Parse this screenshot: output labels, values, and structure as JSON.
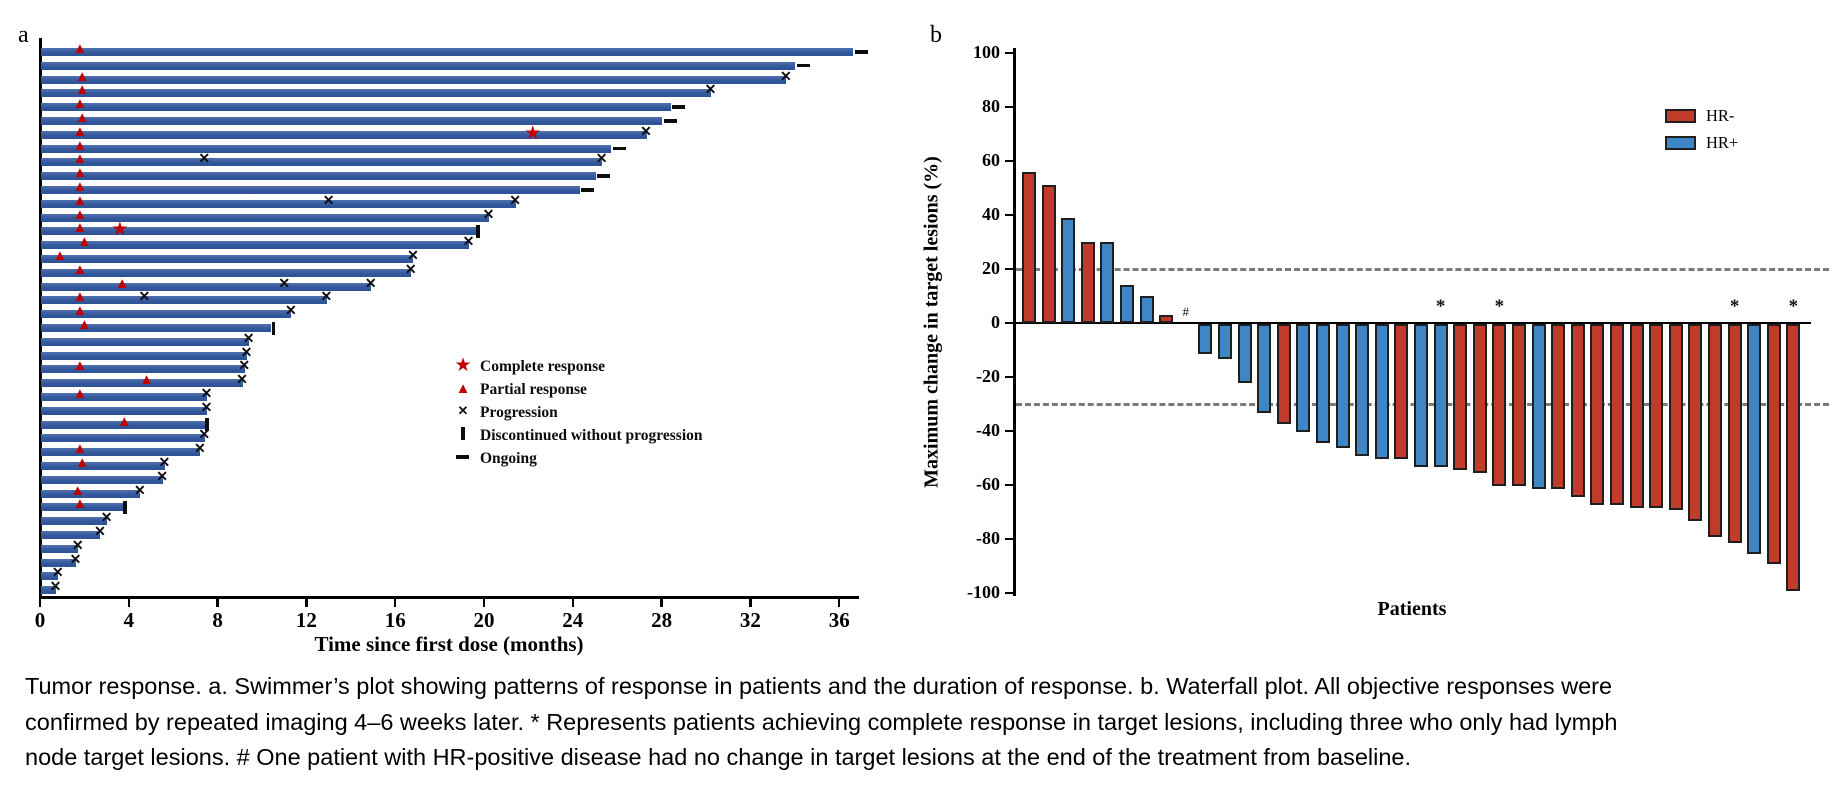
{
  "page": {
    "panel_a_label": "a",
    "panel_b_label": "b"
  },
  "colors": {
    "swimmer_bar": "#33589c",
    "hr_negative": "#c13b2a",
    "hr_positive": "#3e86c5",
    "response_marker_red": "#c00000",
    "bar_outline": "#1f1f1f",
    "dashed_reference": "#7a7a7a",
    "axis_black": "#000000"
  },
  "chart_data": [
    {
      "type": "swimmer",
      "panel": "a",
      "xlabel": "Time since first dose (months)",
      "x_ticks": [
        0,
        4,
        8,
        12,
        16,
        20,
        24,
        28,
        32,
        36
      ],
      "x_range": [
        0,
        36.8
      ],
      "legend": [
        {
          "marker": "star",
          "label": "Complete response"
        },
        {
          "marker": "triangle",
          "label": "Partial response"
        },
        {
          "marker": "x",
          "label": "Progression"
        },
        {
          "marker": "vbar",
          "label": "Discontinued without progression"
        },
        {
          "marker": "dash",
          "label": "Ongoing"
        }
      ],
      "bars": [
        {
          "length_months": 36.6,
          "end": "ongoing",
          "markers": [
            {
              "type": "partial_response",
              "month": 1.8
            }
          ]
        },
        {
          "length_months": 34.0,
          "end": "ongoing",
          "markers": []
        },
        {
          "length_months": 33.6,
          "end": "progression",
          "markers": [
            {
              "type": "partial_response",
              "month": 1.9
            }
          ]
        },
        {
          "length_months": 30.2,
          "end": "progression",
          "markers": [
            {
              "type": "partial_response",
              "month": 1.9
            }
          ]
        },
        {
          "length_months": 28.4,
          "end": "ongoing",
          "markers": [
            {
              "type": "partial_response",
              "month": 1.8
            }
          ]
        },
        {
          "length_months": 28.0,
          "end": "ongoing",
          "markers": [
            {
              "type": "partial_response",
              "month": 1.9
            }
          ]
        },
        {
          "length_months": 27.3,
          "end": "progression",
          "markers": [
            {
              "type": "partial_response",
              "month": 1.8
            },
            {
              "type": "complete_response",
              "month": 22.2
            }
          ]
        },
        {
          "length_months": 25.7,
          "end": "ongoing",
          "markers": [
            {
              "type": "partial_response",
              "month": 1.8
            }
          ]
        },
        {
          "length_months": 25.3,
          "end": "progression",
          "markers": [
            {
              "type": "partial_response",
              "month": 1.8
            },
            {
              "type": "progression",
              "month": 7.4
            }
          ]
        },
        {
          "length_months": 25.0,
          "end": "ongoing",
          "markers": [
            {
              "type": "partial_response",
              "month": 1.8
            }
          ]
        },
        {
          "length_months": 24.3,
          "end": "ongoing",
          "markers": [
            {
              "type": "partial_response",
              "month": 1.8
            }
          ]
        },
        {
          "length_months": 21.4,
          "end": "progression",
          "markers": [
            {
              "type": "partial_response",
              "month": 1.8
            },
            {
              "type": "progression",
              "month": 13.0
            }
          ]
        },
        {
          "length_months": 20.2,
          "end": "progression",
          "markers": [
            {
              "type": "partial_response",
              "month": 1.8
            }
          ]
        },
        {
          "length_months": 19.6,
          "end": "discontinued",
          "markers": [
            {
              "type": "partial_response",
              "month": 1.8
            },
            {
              "type": "complete_response",
              "month": 3.6
            }
          ]
        },
        {
          "length_months": 19.3,
          "end": "progression",
          "markers": [
            {
              "type": "partial_response",
              "month": 2.0
            }
          ]
        },
        {
          "length_months": 16.8,
          "end": "progression",
          "markers": [
            {
              "type": "partial_response",
              "month": 0.9
            }
          ]
        },
        {
          "length_months": 16.7,
          "end": "progression",
          "markers": [
            {
              "type": "partial_response",
              "month": 1.8
            }
          ]
        },
        {
          "length_months": 14.9,
          "end": "progression",
          "markers": [
            {
              "type": "partial_response",
              "month": 3.7
            },
            {
              "type": "progression",
              "month": 11.0
            }
          ]
        },
        {
          "length_months": 12.9,
          "end": "progression",
          "markers": [
            {
              "type": "partial_response",
              "month": 1.8
            },
            {
              "type": "progression",
              "month": 4.7
            }
          ]
        },
        {
          "length_months": 11.3,
          "end": "progression",
          "markers": [
            {
              "type": "partial_response",
              "month": 1.8
            }
          ]
        },
        {
          "length_months": 10.4,
          "end": "discontinued",
          "markers": [
            {
              "type": "partial_response",
              "month": 2.0
            }
          ]
        },
        {
          "length_months": 9.4,
          "end": "progression",
          "markers": []
        },
        {
          "length_months": 9.3,
          "end": "progression",
          "markers": []
        },
        {
          "length_months": 9.2,
          "end": "progression",
          "markers": [
            {
              "type": "partial_response",
              "month": 1.8
            }
          ]
        },
        {
          "length_months": 9.1,
          "end": "progression",
          "markers": [
            {
              "type": "partial_response",
              "month": 4.8
            }
          ]
        },
        {
          "length_months": 7.5,
          "end": "progression",
          "markers": [
            {
              "type": "partial_response",
              "month": 1.8
            }
          ]
        },
        {
          "length_months": 7.5,
          "end": "progression",
          "markers": []
        },
        {
          "length_months": 7.4,
          "end": "discontinued",
          "markers": [
            {
              "type": "partial_response",
              "month": 3.8
            }
          ]
        },
        {
          "length_months": 7.4,
          "end": "progression",
          "markers": []
        },
        {
          "length_months": 7.2,
          "end": "progression",
          "markers": [
            {
              "type": "partial_response",
              "month": 1.8
            }
          ]
        },
        {
          "length_months": 5.6,
          "end": "progression",
          "markers": [
            {
              "type": "partial_response",
              "month": 1.9
            }
          ]
        },
        {
          "length_months": 5.5,
          "end": "progression",
          "markers": []
        },
        {
          "length_months": 4.5,
          "end": "progression",
          "markers": [
            {
              "type": "partial_response",
              "month": 1.7
            }
          ]
        },
        {
          "length_months": 3.7,
          "end": "discontinued",
          "markers": [
            {
              "type": "partial_response",
              "month": 1.8
            }
          ]
        },
        {
          "length_months": 3.0,
          "end": "progression",
          "markers": []
        },
        {
          "length_months": 2.7,
          "end": "progression",
          "markers": []
        },
        {
          "length_months": 1.7,
          "end": "progression",
          "markers": []
        },
        {
          "length_months": 1.6,
          "end": "progression",
          "markers": []
        },
        {
          "length_months": 0.8,
          "end": "progression",
          "markers": []
        },
        {
          "length_months": 0.7,
          "end": "progression",
          "markers": []
        }
      ]
    },
    {
      "type": "bar",
      "subtype": "waterfall",
      "panel": "b",
      "ylabel": "Maximum change in target lesions (%)",
      "xlabel": "Patients",
      "ylim": [
        -100,
        100
      ],
      "y_ticks": [
        100,
        80,
        60,
        40,
        20,
        0,
        -20,
        -40,
        -60,
        -80,
        -100
      ],
      "reference_lines": [
        20,
        -30
      ],
      "legend": [
        {
          "label": "HR-",
          "color_key": "hr_negative"
        },
        {
          "label": "HR+",
          "color_key": "hr_positive"
        }
      ],
      "patients": [
        {
          "value": 56,
          "group": "HR-",
          "note": null
        },
        {
          "value": 51,
          "group": "HR-",
          "note": null
        },
        {
          "value": 39,
          "group": "HR+",
          "note": null
        },
        {
          "value": 30,
          "group": "HR-",
          "note": null
        },
        {
          "value": 30,
          "group": "HR+",
          "note": null
        },
        {
          "value": 14,
          "group": "HR+",
          "note": null
        },
        {
          "value": 10,
          "group": "HR+",
          "note": null
        },
        {
          "value": 3,
          "group": "HR-",
          "note": null
        },
        {
          "value": 0,
          "group": "HR+",
          "note": "#"
        },
        {
          "value": -11,
          "group": "HR+",
          "note": null
        },
        {
          "value": -13,
          "group": "HR+",
          "note": null
        },
        {
          "value": -22,
          "group": "HR+",
          "note": null
        },
        {
          "value": -33,
          "group": "HR+",
          "note": null
        },
        {
          "value": -37,
          "group": "HR-",
          "note": null
        },
        {
          "value": -40,
          "group": "HR+",
          "note": null
        },
        {
          "value": -44,
          "group": "HR+",
          "note": null
        },
        {
          "value": -46,
          "group": "HR+",
          "note": null
        },
        {
          "value": -49,
          "group": "HR+",
          "note": null
        },
        {
          "value": -50,
          "group": "HR+",
          "note": null
        },
        {
          "value": -50,
          "group": "HR-",
          "note": null
        },
        {
          "value": -53,
          "group": "HR+",
          "note": null
        },
        {
          "value": -53,
          "group": "HR+",
          "note": "*"
        },
        {
          "value": -54,
          "group": "HR-",
          "note": null
        },
        {
          "value": -55,
          "group": "HR-",
          "note": null
        },
        {
          "value": -60,
          "group": "HR-",
          "note": "*"
        },
        {
          "value": -60,
          "group": "HR-",
          "note": null
        },
        {
          "value": -61,
          "group": "HR+",
          "note": null
        },
        {
          "value": -61,
          "group": "HR-",
          "note": null
        },
        {
          "value": -64,
          "group": "HR-",
          "note": null
        },
        {
          "value": -67,
          "group": "HR-",
          "note": null
        },
        {
          "value": -67,
          "group": "HR-",
          "note": null
        },
        {
          "value": -68,
          "group": "HR-",
          "note": null
        },
        {
          "value": -68,
          "group": "HR-",
          "note": null
        },
        {
          "value": -69,
          "group": "HR-",
          "note": null
        },
        {
          "value": -73,
          "group": "HR-",
          "note": null
        },
        {
          "value": -79,
          "group": "HR-",
          "note": null
        },
        {
          "value": -81,
          "group": "HR-",
          "note": "*"
        },
        {
          "value": -85,
          "group": "HR+",
          "note": null
        },
        {
          "value": -89,
          "group": "HR-",
          "note": null
        },
        {
          "value": -99,
          "group": "HR-",
          "note": "*"
        }
      ]
    }
  ],
  "caption": {
    "lines": [
      "Tumor response. a. Swimmer’s plot showing patterns of response in patients and the duration of response. b. Waterfall plot. All objective responses were",
      "confirmed by repeated imaging 4–6 weeks later. * Represents patients achieving complete response in target lesions, including three who only had lymph",
      "node target lesions. # One patient with HR-positive disease had no change in target lesions at the end of the treatment from baseline."
    ]
  }
}
